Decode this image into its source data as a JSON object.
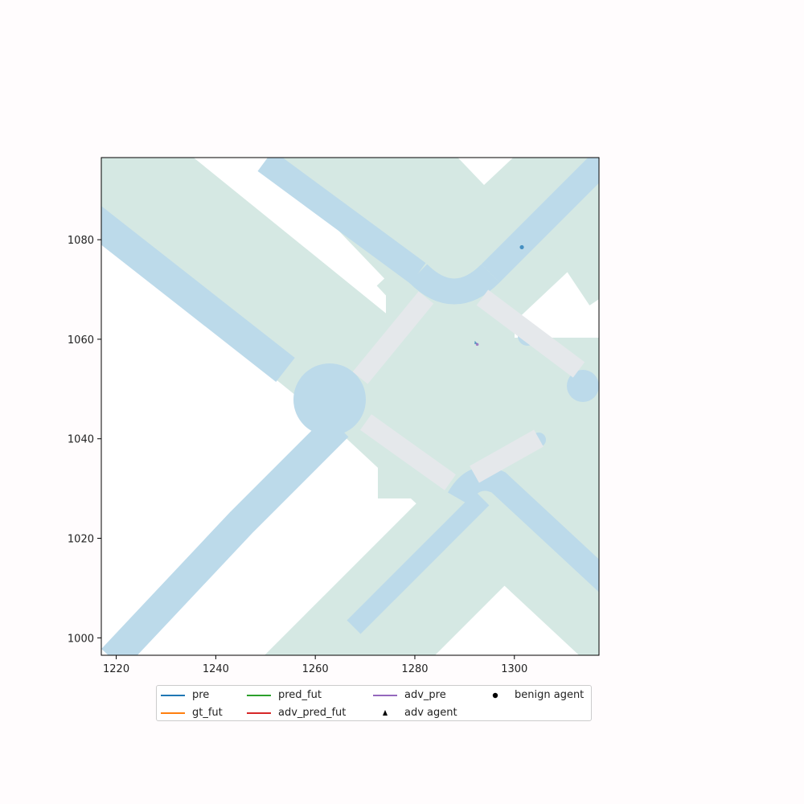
{
  "chart_data": {
    "type": "scatter",
    "title": "",
    "xlabel": "",
    "ylabel": "",
    "xlim": [
      1217,
      1317
    ],
    "ylim": [
      996.5,
      1096.5
    ],
    "x_ticks": [
      1220,
      1240,
      1260,
      1280,
      1300
    ],
    "y_ticks": [
      1000,
      1020,
      1040,
      1060,
      1080
    ],
    "grid": false,
    "legend_position": "lower-center",
    "legend": [
      {
        "label": "pre",
        "kind": "line",
        "color": "#1f77b4"
      },
      {
        "label": "gt_fut",
        "kind": "line",
        "color": "#ff7f0e"
      },
      {
        "label": "pred_fut",
        "kind": "line",
        "color": "#2ca02c"
      },
      {
        "label": "adv_pred_fut",
        "kind": "line",
        "color": "#d62728"
      },
      {
        "label": "adv_pre",
        "kind": "line",
        "color": "#9467bd"
      },
      {
        "label": "adv agent",
        "kind": "triangle",
        "color": "#000000"
      },
      {
        "label": "benign agent",
        "kind": "circle",
        "color": "#000000"
      }
    ],
    "benign_agents": [
      {
        "x": 1301.5,
        "y": 1078.5,
        "color": "#1f77b4"
      }
    ],
    "adv_agents": [
      {
        "x": 1292.3,
        "y": 1059.2,
        "color": "#9467bd"
      }
    ],
    "map_colors": {
      "drivable_area": "#d5e8e3",
      "sidewalk": "#bcdaea",
      "crosswalk": "#e5e8eb"
    }
  }
}
